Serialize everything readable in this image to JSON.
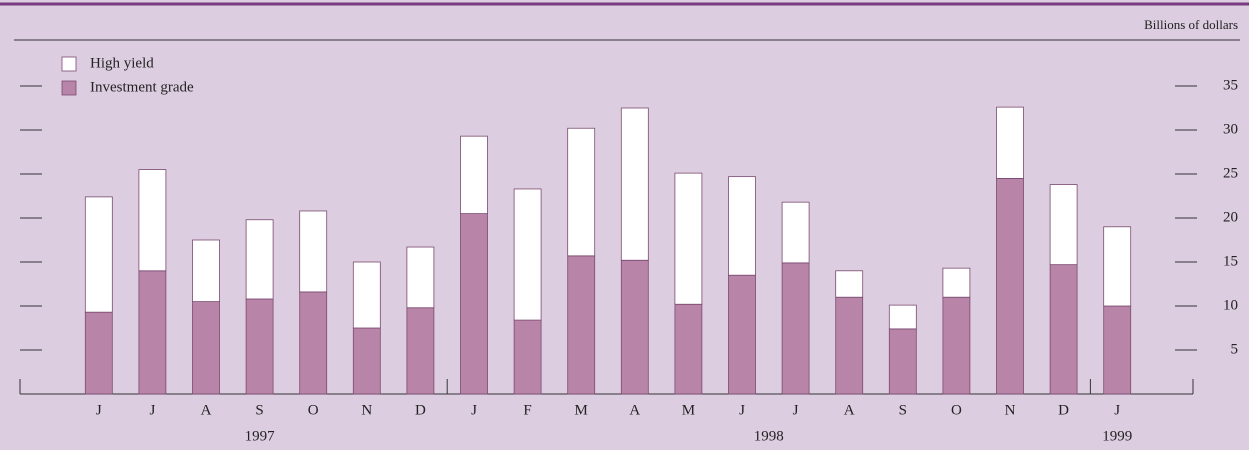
{
  "chart_data": {
    "type": "stacked-bar",
    "unit_label": "Billions of dollars",
    "categories": [
      "J",
      "J",
      "A",
      "S",
      "O",
      "N",
      "D",
      "J",
      "F",
      "M",
      "A",
      "M",
      "J",
      "J",
      "A",
      "S",
      "O",
      "N",
      "D",
      "J"
    ],
    "x_groups": [
      {
        "label": "1997",
        "count": 7
      },
      {
        "label": "1998",
        "count": 12
      },
      {
        "label": "1999",
        "count": 1
      }
    ],
    "series": [
      {
        "name": "Investment grade",
        "color": "#b884a8",
        "values": [
          9.3,
          14.0,
          10.5,
          10.8,
          11.6,
          7.5,
          9.8,
          20.5,
          8.4,
          15.7,
          15.2,
          10.2,
          13.5,
          14.9,
          11.0,
          7.4,
          11.0,
          24.5,
          14.7,
          10.0
        ]
      },
      {
        "name": "High yield",
        "color": "#ffffff",
        "values": [
          13.1,
          11.5,
          7.0,
          9.0,
          9.2,
          7.5,
          6.9,
          8.8,
          14.9,
          14.5,
          17.3,
          14.9,
          11.2,
          6.9,
          3.0,
          2.7,
          3.3,
          8.1,
          9.1,
          9.0
        ]
      }
    ],
    "legend_order": [
      1,
      0
    ],
    "ylim": [
      0,
      40
    ],
    "yticks": [
      5,
      10,
      15,
      20,
      25,
      30,
      35
    ]
  }
}
